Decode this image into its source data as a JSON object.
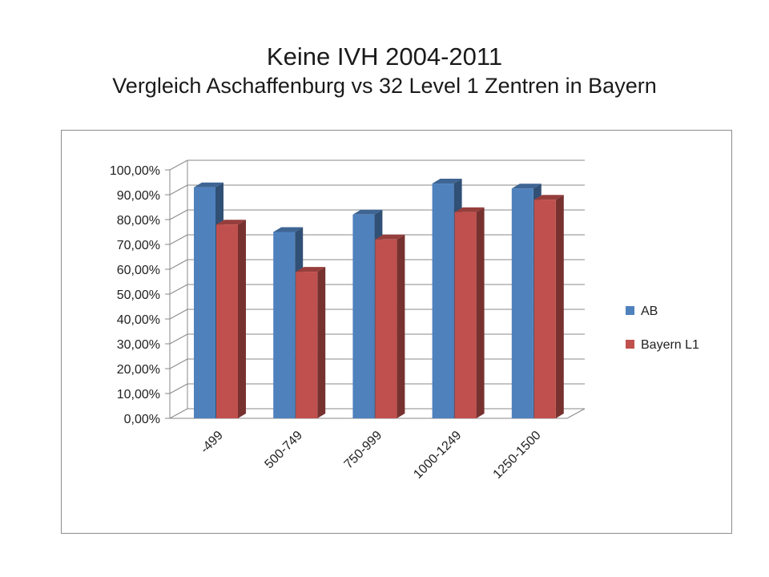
{
  "chart_data": {
    "type": "bar",
    "title": "Keine IVH 2004-2011",
    "subtitle": "Vergleich Aschaffenburg vs 32 Level 1 Zentren in Bayern",
    "categories": [
      "-499",
      "500-749",
      "750-999",
      "1000-1249",
      "1250-1500"
    ],
    "series": [
      {
        "name": "AB",
        "values": [
          93,
          75,
          82,
          94.5,
          92.5
        ],
        "color": "#4f81bd"
      },
      {
        "name": "Bayern L1",
        "values": [
          78,
          59,
          72,
          83,
          88
        ],
        "color": "#c0504d"
      }
    ],
    "ylim": [
      0,
      100
    ],
    "yticks": [
      "0,00%",
      "10,00%",
      "20,00%",
      "30,00%",
      "40,00%",
      "50,00%",
      "60,00%",
      "70,00%",
      "80,00%",
      "90,00%",
      "100,00%"
    ],
    "grid": true,
    "legend": "right",
    "style": "3d-clustered-column"
  }
}
